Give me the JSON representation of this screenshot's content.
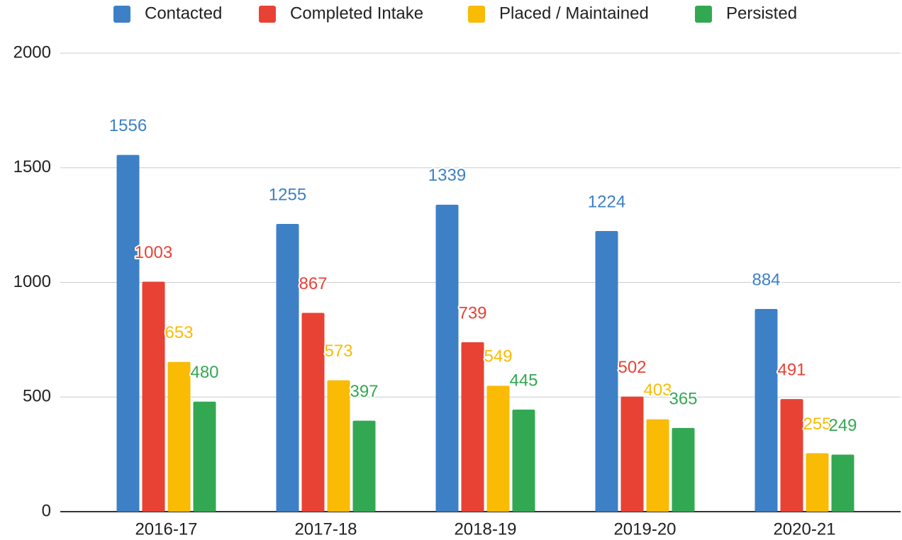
{
  "chart_data": {
    "type": "bar",
    "categories": [
      "2016-17",
      "2017-18",
      "2018-19",
      "2019-20",
      "2020-21"
    ],
    "series": [
      {
        "name": "Contacted",
        "color": "#3d80c6",
        "values": [
          1556,
          1255,
          1339,
          1224,
          884
        ]
      },
      {
        "name": "Completed Intake",
        "color": "#e84235",
        "values": [
          1003,
          867,
          739,
          502,
          491
        ]
      },
      {
        "name": "Placed / Maintained",
        "color": "#f9bb03",
        "values": [
          653,
          573,
          549,
          403,
          255
        ]
      },
      {
        "name": "Persisted",
        "color": "#33a853",
        "values": [
          480,
          397,
          445,
          365,
          249
        ]
      }
    ],
    "ylim": [
      0,
      2000
    ],
    "yticks": [
      0,
      500,
      1000,
      1500,
      2000
    ],
    "grid": true,
    "legend": "top"
  }
}
